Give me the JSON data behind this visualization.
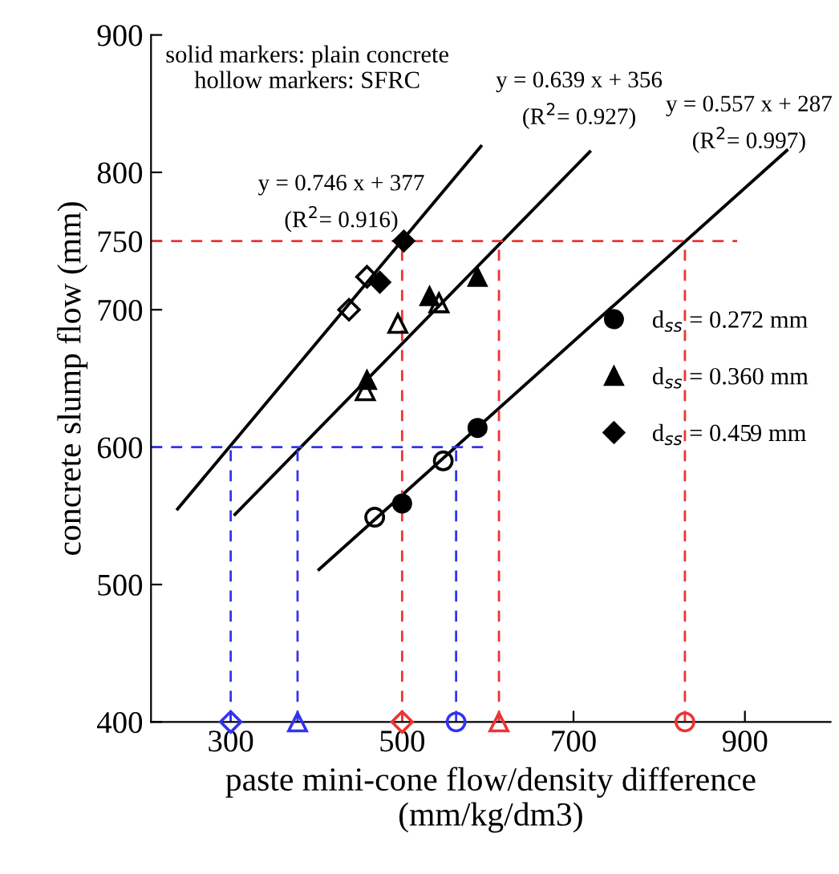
{
  "chart_data": {
    "type": "scatter",
    "xlabel": "paste mini-cone flow/density difference\n(mm/kg/dm3)",
    "ylabel": "concrete slump flow (mm)",
    "xlim": [
      207,
      1000
    ],
    "ylim": [
      400,
      900
    ],
    "xticks": [
      300,
      500,
      700,
      900
    ],
    "yticks": [
      400,
      500,
      600,
      700,
      750,
      800,
      900
    ],
    "grid": false,
    "legend": "right",
    "annotations": [
      "solid markers: plain concrete\nhollow markers: SFRC",
      "y = 0.746 x + 377\n(R$^{2}$= 0.916)",
      "y = 0.639 x + 356\n(R$^{2}$= 0.927)",
      "y = 0.557 x + 287\n(R$^{2}$= 0.997)"
    ],
    "series": [
      {
        "name": "d$_{ss}$ = 0.272 mm",
        "marker": "circle",
        "color": "#000000",
        "x": [
          500,
          588
        ],
        "values": [
          559,
          614
        ]
      },
      {
        "marker": "circle",
        "color": "#000000",
        "x": [
          468,
          548
        ],
        "values": [
          549,
          590
        ]
      },
      {
        "name": "d$_{ss}$ = 0.360 mm",
        "marker": "triangle",
        "color": "#000000",
        "x": [
          459,
          532,
          588
        ],
        "values": [
          649,
          710,
          724
        ]
      },
      {
        "marker": "triangle",
        "color": "#000000",
        "x": [
          457,
          495,
          543
        ],
        "values": [
          641,
          690,
          705
        ]
      },
      {
        "name": "d$_{ss}$ = 0.459 mm",
        "marker": "diamond",
        "color": "#000000",
        "x": [
          474,
          502
        ],
        "values": [
          720,
          750
        ]
      },
      {
        "marker": "diamond",
        "color": "#000000",
        "x": [
          438,
          459
        ],
        "values": [
          700,
          724
        ]
      },
      {
        "type": "line",
        "line_style": "solid",
        "color": "#000000",
        "x": [
          238,
          592
        ],
        "values": [
          555,
          819
        ]
      },
      {
        "type": "line",
        "line_style": "solid",
        "color": "#000000",
        "x": [
          305,
          719
        ],
        "values": [
          551,
          815
        ]
      },
      {
        "type": "line",
        "line_style": "solid",
        "color": "#000000",
        "x": [
          403,
          949
        ],
        "values": [
          511,
          816
        ]
      },
      {
        "type": "line",
        "line_style": "dashed",
        "color": "#ee3333",
        "x": [
          207,
          891
        ],
        "values": [
          750,
          750
        ]
      },
      {
        "type": "line",
        "line_style": "dashed",
        "color": "#ee3333",
        "x": [
          500,
          500
        ],
        "values": [
          400,
          750
        ]
      },
      {
        "type": "line",
        "line_style": "dashed",
        "color": "#ee3333",
        "x": [
          613,
          613
        ],
        "values": [
          400,
          750
        ]
      },
      {
        "type": "line",
        "line_style": "dashed",
        "color": "#ee3333",
        "x": [
          830,
          830
        ],
        "values": [
          400,
          750
        ]
      },
      {
        "type": "line",
        "line_style": "dashed",
        "color": "#3333ee",
        "x": [
          207,
          595
        ],
        "values": [
          600,
          600
        ]
      },
      {
        "type": "line",
        "line_style": "dashed",
        "color": "#3333ee",
        "x": [
          300,
          300
        ],
        "values": [
          400,
          600
        ]
      },
      {
        "type": "line",
        "line_style": "dashed",
        "color": "#3333ee",
        "x": [
          378,
          378
        ],
        "values": [
          400,
          600
        ]
      },
      {
        "type": "line",
        "line_style": "dashed",
        "color": "#3333ee",
        "x": [
          563,
          563
        ],
        "values": [
          400,
          600
        ]
      },
      {
        "marker": "diamond",
        "colors": [
          "#3333ee",
          "#ee3333"
        ],
        "x": [
          300,
          500
        ],
        "values": [
          400,
          400
        ]
      },
      {
        "marker": "triangle",
        "colors": [
          "#3333ee",
          "#ee3333"
        ],
        "x": [
          378,
          613
        ],
        "values": [
          400,
          400
        ]
      },
      {
        "marker": "circle",
        "colors": [
          "#3333ee",
          "#ee3333"
        ],
        "x": [
          563,
          830
        ],
        "values": [
          400,
          400
        ]
      }
    ]
  }
}
